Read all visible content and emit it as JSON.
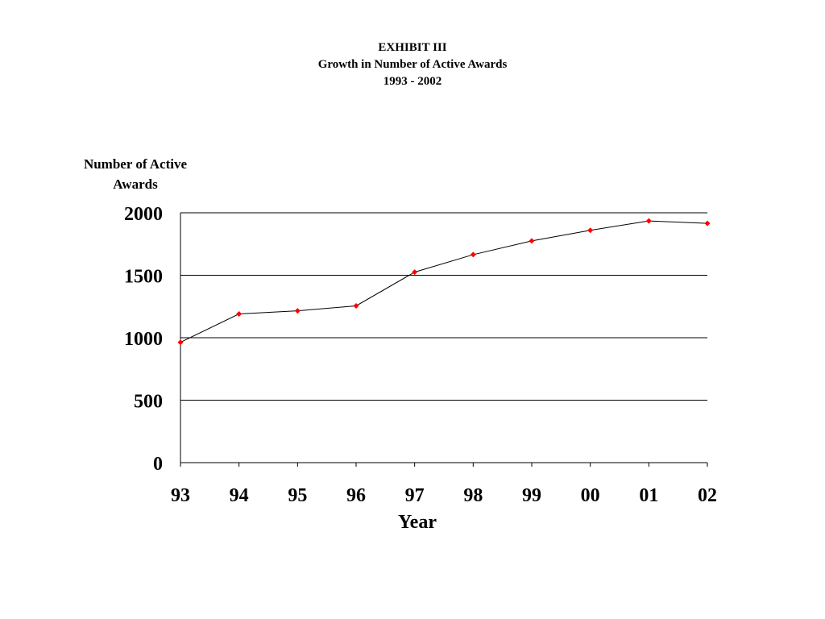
{
  "chart_data": {
    "type": "line",
    "title": "EXHIBIT III",
    "subtitle": "Growth in Number of Active Awards",
    "period": "1993 - 2002",
    "xlabel": "Year",
    "ylabel": "Number of Active Awards",
    "categories": [
      "93",
      "94",
      "95",
      "96",
      "97",
      "98",
      "99",
      "00",
      "01",
      "02"
    ],
    "series": [
      {
        "values": [
          963,
          1190,
          1215,
          1255,
          1525,
          1665,
          1775,
          1860,
          1935,
          1915
        ]
      }
    ],
    "ylim": [
      0,
      2000
    ],
    "yticks": [
      "0",
      "500",
      "1000",
      "1500",
      "2000"
    ],
    "grid": true,
    "line_color": "#000000",
    "marker_color": "#ff0000",
    "legend": "none"
  }
}
